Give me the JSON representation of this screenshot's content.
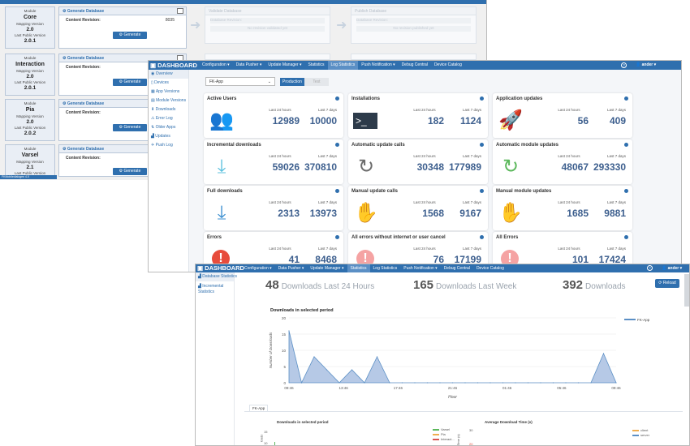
{
  "window1": {
    "title": "FK-App",
    "modules": [
      {
        "module_label": "Module",
        "name": "Core",
        "mapping_label": "Mapping Version",
        "mapping": "2.0",
        "public_label": "Last Public Version",
        "public": "2.0.1",
        "gen_title": "Generate Database",
        "content_label": "Content Revision:",
        "content_value": "8035",
        "gen_button": "Generate"
      },
      {
        "module_label": "Module",
        "name": "Interaction",
        "mapping_label": "Mapping Version",
        "mapping": "2.0",
        "public_label": "Last Public Version",
        "public": "2.0.1",
        "gen_title": "Generate Database",
        "content_label": "Content Revision:",
        "content_value": "",
        "gen_button": "Generate"
      },
      {
        "module_label": "Module",
        "name": "Pia",
        "mapping_label": "Mapping Version",
        "mapping": "2.0",
        "public_label": "Last Public Version",
        "public": "2.0.2",
        "gen_title": "Generate Database",
        "content_label": "Content Revision:",
        "content_value": "",
        "gen_button": "Generate"
      },
      {
        "module_label": "Module",
        "name": "Varsel",
        "mapping_label": "Mapping Version",
        "mapping": "2.1",
        "public_label": "Last Public Version",
        "public": "",
        "gen_title": "Generate Database",
        "content_label": "Content Revision:",
        "content_value": "",
        "gen_button": "Generate"
      }
    ],
    "ghost1_title": "Validate Database",
    "ghost1_line": "Database Revision:",
    "ghost1_note": "No revision validated yet",
    "ghost2_title": "Publish Database",
    "ghost2_line": "Database Revision:",
    "ghost2_note": "No revision published yet",
    "status": "FKMobiledialogen 4.0"
  },
  "window2": {
    "brand": "DASHBOARD",
    "nav": [
      "Configuration ▾",
      "Data Pusher ▾",
      "Update Manager ▾",
      "Statistics",
      "Log Statistics",
      "Push Notification ▾",
      "Debug Central",
      "Device Catalog"
    ],
    "nav_active_index": 4,
    "help": "?",
    "user": "ander ▾",
    "sidebar": [
      "Overview",
      "Devices",
      "App Versions",
      "Module Versions",
      "Downloads",
      "Error Log",
      "Older Apps",
      "Updates",
      "Push Log"
    ],
    "app_select": "FK-App",
    "env_production": "Production",
    "env_test": "Test",
    "last24_label": "Last 24 hours",
    "last7_label": "Last 7 days",
    "cards": [
      {
        "title": "Active Users",
        "icon": "users-icon",
        "v24": "12989",
        "v7": "10000",
        "color": "#8a7360"
      },
      {
        "title": "Installations",
        "icon": "terminal-icon",
        "v24": "182",
        "v7": "1124",
        "color": "#2d3b4a"
      },
      {
        "title": "Application updates",
        "icon": "rocket-icon",
        "v24": "56",
        "v7": "409",
        "color": "#5cb85c"
      },
      {
        "title": "Incremental downloads",
        "icon": "download-icon",
        "v24": "59026",
        "v7": "370810",
        "color": "#5bc0de"
      },
      {
        "title": "Automatic update calls",
        "icon": "refresh-icon",
        "v24": "30348",
        "v7": "177989",
        "color": "#6b6b6b"
      },
      {
        "title": "Automatic module updates",
        "icon": "refresh-icon",
        "v24": "48067",
        "v7": "293330",
        "color": "#5cb85c"
      },
      {
        "title": "Full downloads",
        "icon": "download-icon",
        "v24": "2313",
        "v7": "13973",
        "color": "#3b8fd0"
      },
      {
        "title": "Manual update calls",
        "icon": "hand-icon",
        "v24": "1568",
        "v7": "9167",
        "color": "#f0ad4e"
      },
      {
        "title": "Manual module updates",
        "icon": "hand-icon",
        "v24": "1685",
        "v7": "9881",
        "color": "#5cb85c"
      },
      {
        "title": "Errors",
        "icon": "error-icon",
        "v24": "41",
        "v7": "8468",
        "color": "#e74c3c"
      },
      {
        "title": "All errors without internet or user cancel",
        "icon": "error-icon",
        "v24": "76",
        "v7": "17199",
        "color": "#f5a3a3"
      },
      {
        "title": "All Errors",
        "icon": "error-icon",
        "v24": "101",
        "v7": "17424",
        "color": "#f5a3a3"
      }
    ]
  },
  "window3": {
    "brand": "DASHBOARD",
    "nav": [
      "Configuration ▾",
      "Data Pusher ▾",
      "Update Manager ▾",
      "Statistics",
      "Log Statistics",
      "Push Notification ▾",
      "Debug Central",
      "Device Catalog"
    ],
    "nav_active_index": 3,
    "help": "?",
    "user": "ander ▾",
    "sidebar": [
      "Database Statistics",
      "Incremental Statistics"
    ],
    "stat1_num": "48",
    "stat1_text": "Downloads Last 24 Hours",
    "stat2_num": "165",
    "stat2_text": "Downloads Last Week",
    "stat3_num": "392",
    "stat3_text": "Downloads",
    "reload": "Reload",
    "tab": "FK-App",
    "sub1_title": "Downloads in selected period",
    "sub1_legend": [
      "Varsel",
      "Pia",
      "Interact..."
    ],
    "sub1_legend_colors": [
      "#5cb85c",
      "#f0ad4e",
      "#d9534f"
    ],
    "sub1_ylabel": "loads",
    "sub1_ticks": [
      "15",
      "10"
    ],
    "sub2_title": "Average Download Time (s)",
    "sub2_legend": [
      "client",
      "server"
    ],
    "sub2_legend_colors": [
      "#f0ad4e",
      "#5b8fc5"
    ],
    "sub2_ylabel": "Time (s)",
    "sub2_ticks": [
      "30",
      "20"
    ]
  },
  "chart_data": {
    "type": "area",
    "title": "Downloads in selected period",
    "xlabel": "Hour",
    "ylabel": "Number of Downloads",
    "ylim": [
      0,
      20
    ],
    "yticks": [
      0,
      5,
      10,
      15,
      20
    ],
    "x_ticks": [
      "09:46",
      "13:46",
      "17:46",
      "21:46",
      "01:46",
      "05:46",
      "09:46"
    ],
    "series": [
      {
        "name": "FK-App",
        "color": "#5b8fc5",
        "fill": "#b6c9e6",
        "values": [
          16,
          0,
          8,
          4,
          0,
          4,
          0,
          8,
          0,
          0,
          0,
          0,
          0,
          0,
          0,
          0,
          0,
          0,
          0,
          0,
          0,
          0,
          0,
          0,
          0,
          9,
          0
        ]
      }
    ],
    "legend_position": "top-right",
    "grid": true
  }
}
